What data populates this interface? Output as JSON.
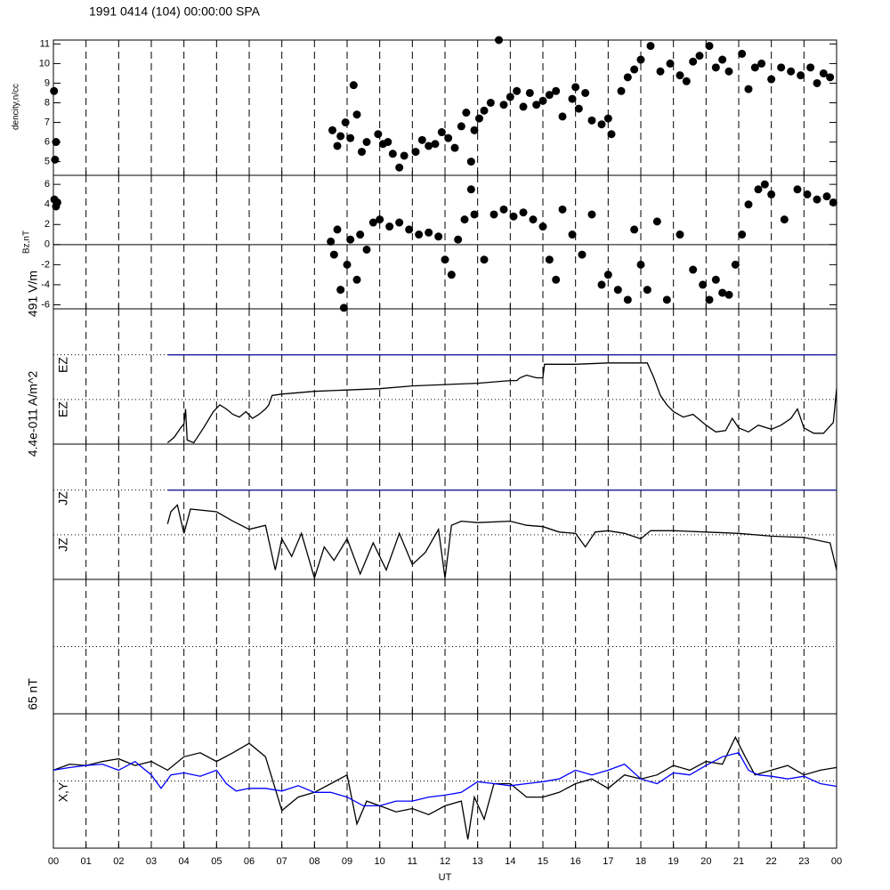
{
  "chart_data": [
    {
      "type": "scatter",
      "title": "1991 0414 (104) 00:00:00 SPA",
      "ylabels": [
        "dencity,n/cc"
      ],
      "ylim": [
        4.3,
        11.2
      ],
      "yticks": [
        5,
        6,
        7,
        8,
        9,
        10,
        11
      ],
      "series": [
        {
          "color": "#000000",
          "x": [
            0.02,
            0.05,
            0.08,
            8.55,
            8.7,
            8.8,
            8.95,
            9.1,
            9.2,
            9.3,
            9.45,
            9.6,
            9.95,
            10.1,
            10.25,
            10.4,
            10.6,
            10.75,
            11.1,
            11.3,
            11.5,
            11.7,
            11.9,
            12.1,
            12.3,
            12.5,
            12.65,
            12.8,
            12.9,
            13.05,
            13.2,
            13.4,
            13.65,
            13.8,
            14.0,
            14.2,
            14.4,
            14.6,
            14.8,
            15.0,
            15.2,
            15.4,
            15.6,
            15.9,
            16.0,
            16.1,
            16.3,
            16.5,
            16.8,
            17.0,
            17.1,
            17.4,
            17.6,
            17.8,
            18.0,
            18.3,
            18.6,
            18.9,
            19.2,
            19.4,
            19.6,
            19.8,
            20.1,
            20.3,
            20.5,
            20.7,
            21.1,
            21.3,
            21.5,
            21.7,
            22.0,
            22.3,
            22.6,
            22.9,
            23.2,
            23.4,
            23.6,
            23.8
          ],
          "values": [
            8.6,
            5.1,
            6.0,
            6.6,
            5.8,
            6.3,
            7.0,
            6.2,
            8.9,
            7.4,
            5.5,
            6.0,
            6.4,
            5.9,
            6.0,
            5.4,
            4.7,
            5.3,
            5.5,
            6.1,
            5.8,
            5.9,
            6.5,
            6.2,
            5.7,
            6.8,
            7.5,
            5.0,
            6.6,
            7.2,
            7.6,
            8.0,
            11.2,
            7.9,
            8.3,
            8.6,
            7.8,
            8.5,
            7.9,
            8.1,
            8.4,
            8.6,
            7.3,
            8.2,
            8.8,
            7.7,
            8.5,
            7.1,
            6.9,
            7.2,
            6.4,
            8.6,
            9.3,
            9.7,
            10.2,
            10.9,
            9.6,
            10.0,
            9.4,
            9.1,
            10.1,
            10.4,
            10.9,
            9.8,
            10.2,
            9.6,
            10.5,
            8.7,
            9.8,
            10.0,
            9.2,
            9.8,
            9.6,
            9.4,
            9.8,
            9.0,
            9.5,
            9.3
          ]
        }
      ]
    },
    {
      "type": "scatter",
      "ylabels": [
        "Bz,nT"
      ],
      "ylim": [
        -6.4,
        6.9
      ],
      "yticks": [
        -6,
        -4,
        -2,
        0,
        2,
        4,
        6
      ],
      "zero_line": true,
      "series": [
        {
          "color": "#000000",
          "x": [
            0.03,
            0.08,
            0.12,
            8.5,
            8.6,
            8.7,
            8.8,
            8.9,
            9.0,
            9.1,
            9.3,
            9.4,
            9.6,
            9.8,
            10.0,
            10.3,
            10.6,
            10.9,
            11.2,
            11.5,
            11.8,
            12.0,
            12.2,
            12.4,
            12.6,
            12.8,
            12.9,
            13.2,
            13.5,
            13.8,
            14.1,
            14.4,
            14.7,
            15.0,
            15.2,
            15.4,
            15.6,
            15.9,
            16.2,
            16.5,
            16.8,
            17.0,
            17.3,
            17.6,
            17.8,
            18.0,
            18.2,
            18.5,
            18.8,
            19.2,
            19.6,
            19.9,
            20.1,
            20.3,
            20.5,
            20.7,
            20.9,
            21.1,
            21.3,
            21.6,
            21.8,
            22.0,
            22.4,
            22.8,
            23.1,
            23.4,
            23.7,
            23.9
          ],
          "values": [
            4.5,
            3.8,
            4.2,
            0.3,
            -1.0,
            1.5,
            -4.5,
            -6.3,
            -2.0,
            0.5,
            -3.5,
            1.0,
            -0.5,
            2.2,
            2.5,
            1.8,
            2.2,
            1.5,
            1.0,
            1.2,
            0.8,
            -1.5,
            -3.0,
            0.5,
            2.5,
            5.5,
            3.0,
            -1.5,
            3.0,
            3.5,
            2.8,
            3.2,
            2.5,
            1.8,
            -1.5,
            -3.5,
            3.5,
            1.0,
            -1.0,
            3.0,
            -4.0,
            -3.0,
            -4.5,
            -5.5,
            1.5,
            -2.0,
            -4.5,
            2.3,
            -5.5,
            1.0,
            -2.5,
            -4.0,
            -5.5,
            -3.5,
            -4.8,
            -5.0,
            -2.0,
            1.0,
            4.0,
            5.5,
            6.0,
            5.0,
            2.5,
            5.5,
            5.0,
            4.5,
            4.8,
            4.2
          ]
        }
      ]
    },
    {
      "type": "line",
      "ylabels": [
        "491 V/m",
        "EZ",
        "EZ"
      ],
      "ylim": [
        0,
        1
      ],
      "grid_lines": [
        0.33,
        0.66
      ],
      "series": [
        {
          "color": "#1a1a9a",
          "x": [
            3.5,
            24
          ],
          "values": [
            0.66,
            0.66
          ]
        },
        {
          "color": "#000000",
          "x": [
            3.5,
            3.7,
            3.9,
            4.0,
            4.05,
            4.1,
            4.3,
            4.6,
            4.9,
            5.1,
            5.3,
            5.5,
            5.7,
            5.9,
            6.1,
            6.3,
            6.5,
            6.6,
            6.7,
            7.0,
            8,
            9,
            10,
            11,
            12,
            13,
            14,
            14.2,
            14.3,
            14.5,
            14.8,
            15.0,
            15.05,
            16,
            17,
            18,
            18.2,
            18.4,
            18.6,
            18.8,
            19.0,
            19.3,
            19.6,
            20.0,
            20.3,
            20.6,
            20.8,
            21.0,
            21.3,
            21.6,
            22,
            22.3,
            22.6,
            22.8,
            23,
            23.3,
            23.6,
            23.9,
            24
          ],
          "values": [
            0.01,
            0.05,
            0.12,
            0.15,
            0.26,
            0.03,
            0.01,
            0.12,
            0.24,
            0.29,
            0.26,
            0.22,
            0.2,
            0.24,
            0.19,
            0.22,
            0.26,
            0.29,
            0.36,
            0.37,
            0.39,
            0.4,
            0.41,
            0.43,
            0.44,
            0.45,
            0.47,
            0.47,
            0.49,
            0.51,
            0.49,
            0.49,
            0.59,
            0.59,
            0.6,
            0.6,
            0.6,
            0.49,
            0.36,
            0.29,
            0.24,
            0.2,
            0.22,
            0.14,
            0.09,
            0.1,
            0.19,
            0.12,
            0.09,
            0.14,
            0.11,
            0.14,
            0.19,
            0.26,
            0.12,
            0.08,
            0.08,
            0.16,
            0.41
          ]
        }
      ]
    },
    {
      "type": "line",
      "ylabels": [
        "4.4e-011 A/m^2",
        "JZ",
        "JZ"
      ],
      "ylim": [
        0,
        1
      ],
      "grid_lines": [
        0.33,
        0.66
      ],
      "series": [
        {
          "color": "#1a1a9a",
          "x": [
            3.5,
            24
          ],
          "values": [
            0.66,
            0.66
          ]
        },
        {
          "color": "#000000",
          "x": [
            3.5,
            3.6,
            3.8,
            4.0,
            4.2,
            5.0,
            5.5,
            6.0,
            6.5,
            6.8,
            7.0,
            7.3,
            7.6,
            8.0,
            8.3,
            8.6,
            9.0,
            9.4,
            9.8,
            10.2,
            10.6,
            11.0,
            11.4,
            11.8,
            12.0,
            12.2,
            12.5,
            13,
            14,
            14.5,
            15,
            15.5,
            16,
            16.3,
            16.6,
            17,
            17.5,
            18,
            18.3,
            19,
            20,
            21,
            22,
            23,
            23.8,
            24
          ],
          "values": [
            0.41,
            0.5,
            0.55,
            0.34,
            0.52,
            0.5,
            0.43,
            0.37,
            0.4,
            0.07,
            0.3,
            0.17,
            0.34,
            0.01,
            0.24,
            0.14,
            0.3,
            0.04,
            0.27,
            0.07,
            0.34,
            0.11,
            0.2,
            0.37,
            0.01,
            0.4,
            0.43,
            0.42,
            0.43,
            0.4,
            0.39,
            0.35,
            0.34,
            0.24,
            0.35,
            0.36,
            0.34,
            0.3,
            0.36,
            0.36,
            0.35,
            0.34,
            0.32,
            0.31,
            0.27,
            0.07
          ]
        }
      ]
    },
    {
      "type": "line",
      "ylim": [
        0,
        1
      ],
      "grid_lines": [
        0.5
      ],
      "series": []
    },
    {
      "type": "line",
      "ylabels": [
        "65 nT",
        "X,Y"
      ],
      "ylim": [
        -1,
        1
      ],
      "grid_lines": [
        0
      ],
      "xlabel": "UT",
      "xlim": [
        0,
        24
      ],
      "xticks": [
        {
          "value": 0,
          "label": "00"
        },
        {
          "value": 1,
          "label": "01"
        },
        {
          "value": 2,
          "label": "02"
        },
        {
          "value": 3,
          "label": "03"
        },
        {
          "value": 4,
          "label": "04"
        },
        {
          "value": 5,
          "label": "05"
        },
        {
          "value": 6,
          "label": "06"
        },
        {
          "value": 7,
          "label": "07"
        },
        {
          "value": 8,
          "label": "08"
        },
        {
          "value": 9,
          "label": "09"
        },
        {
          "value": 10,
          "label": "10"
        },
        {
          "value": 11,
          "label": "11"
        },
        {
          "value": 12,
          "label": "12"
        },
        {
          "value": 13,
          "label": "13"
        },
        {
          "value": 14,
          "label": "14"
        },
        {
          "value": 15,
          "label": "15"
        },
        {
          "value": 16,
          "label": "16"
        },
        {
          "value": 17,
          "label": "17"
        },
        {
          "value": 18,
          "label": "18"
        },
        {
          "value": 19,
          "label": "19"
        },
        {
          "value": 20,
          "label": "20"
        },
        {
          "value": 21,
          "label": "21"
        },
        {
          "value": 22,
          "label": "22"
        },
        {
          "value": 23,
          "label": "23"
        },
        {
          "value": 24,
          "label": "00"
        }
      ],
      "series": [
        {
          "color": "#000000",
          "x": [
            0,
            0.5,
            1,
            1.5,
            2,
            2.5,
            3,
            3.5,
            4,
            4.5,
            5,
            5.5,
            6,
            6.5,
            7,
            7.5,
            8,
            8.5,
            9,
            9.3,
            9.6,
            10,
            10.5,
            11,
            11.5,
            12,
            12.5,
            12.7,
            12.9,
            13.2,
            13.5,
            14,
            14.5,
            15,
            15.5,
            16,
            16.5,
            17,
            17.5,
            18,
            18.5,
            19,
            19.5,
            20,
            20.5,
            20.9,
            21.2,
            21.5,
            22,
            22.5,
            23,
            23.5,
            24
          ],
          "values": [
            0.16,
            0.25,
            0.23,
            0.29,
            0.33,
            0.23,
            0.29,
            0.16,
            0.36,
            0.42,
            0.29,
            0.42,
            0.56,
            0.36,
            -0.44,
            -0.24,
            -0.17,
            -0.04,
            0.09,
            -0.64,
            -0.3,
            -0.37,
            -0.46,
            -0.41,
            -0.5,
            -0.37,
            -0.3,
            -0.87,
            -0.24,
            -0.57,
            -0.04,
            -0.04,
            -0.24,
            -0.24,
            -0.17,
            -0.04,
            0.03,
            -0.11,
            0.09,
            0.03,
            0.09,
            0.23,
            0.16,
            0.29,
            0.25,
            0.65,
            0.36,
            0.09,
            0.16,
            0.23,
            0.09,
            0.16,
            0.2
          ]
        },
        {
          "color": "#0000ff",
          "x": [
            0,
            0.5,
            1,
            1.5,
            2,
            2.5,
            3,
            3.3,
            3.6,
            4,
            4.5,
            5,
            5.3,
            5.6,
            6,
            6.5,
            7,
            7.5,
            8,
            8.5,
            9,
            9.5,
            10,
            10.5,
            11,
            11.5,
            12,
            12.5,
            13,
            13.5,
            14,
            14.5,
            15,
            15.5,
            16,
            16.5,
            17,
            17.5,
            18,
            18.5,
            19,
            19.5,
            20,
            20.5,
            21,
            21.3,
            21.6,
            22,
            22.5,
            23,
            23.5,
            24
          ],
          "values": [
            0.16,
            0.2,
            0.23,
            0.25,
            0.16,
            0.29,
            0.09,
            -0.11,
            0.09,
            0.12,
            0.07,
            0.16,
            -0.04,
            -0.15,
            -0.11,
            -0.11,
            -0.15,
            -0.07,
            -0.17,
            -0.17,
            -0.24,
            -0.37,
            -0.37,
            -0.3,
            -0.3,
            -0.24,
            -0.21,
            -0.17,
            -0.01,
            -0.04,
            -0.07,
            -0.04,
            -0.01,
            0.03,
            0.16,
            0.09,
            0.16,
            0.25,
            0.03,
            -0.04,
            0.12,
            0.09,
            0.23,
            0.36,
            0.42,
            0.16,
            0.09,
            0.07,
            0.03,
            0.07,
            -0.04,
            -0.08
          ]
        }
      ]
    }
  ]
}
